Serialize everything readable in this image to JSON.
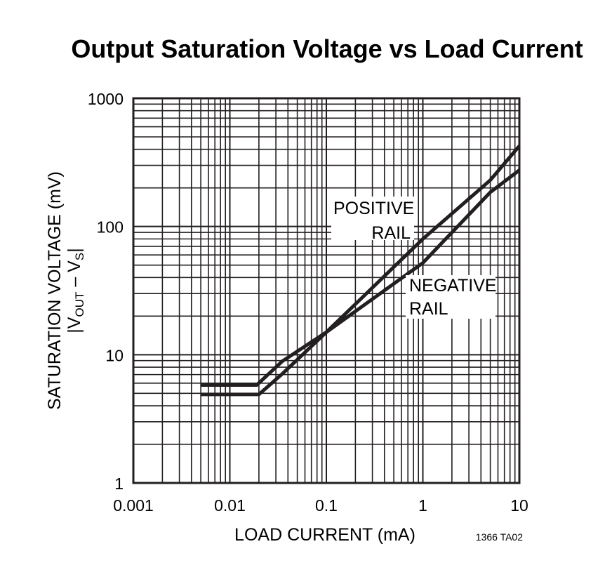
{
  "chart_data": {
    "type": "line",
    "title": "Output Saturation Voltage vs Load Current",
    "xlabel": "LOAD CURRENT (mA)",
    "ylabel": "SATURATION VOLTAGE (mV)",
    "ylabel2": {
      "bar_left": "|",
      "v1": "V",
      "sub1": "OUT",
      "dash": " – ",
      "v2": "V",
      "sub2": "S",
      "bar_right": "|"
    },
    "xscale": "log",
    "yscale": "log",
    "xlim": [
      0.001,
      10
    ],
    "ylim": [
      1,
      1000
    ],
    "xticks": [
      "0.001",
      "0.01",
      "0.1",
      "1",
      "10"
    ],
    "yticks": [
      "1",
      "10",
      "100",
      "1000"
    ],
    "grid": true,
    "series": [
      {
        "name": "POSITIVE RAIL",
        "label_lines": [
          "POSITIVE",
          "RAIL"
        ],
        "x": [
          0.005,
          0.02,
          0.035,
          0.1,
          1,
          5,
          10
        ],
        "y": [
          4.9,
          4.9,
          7.1,
          15,
          80,
          230,
          425
        ]
      },
      {
        "name": "NEGATIVE RAIL",
        "label_lines": [
          "NEGATIVE",
          "RAIL"
        ],
        "x": [
          0.005,
          0.019,
          0.035,
          0.1,
          1,
          5,
          10
        ],
        "y": [
          5.8,
          5.8,
          8.9,
          15,
          52,
          185,
          275
        ]
      }
    ],
    "note": "1366 TA02",
    "line_color": "#231f20"
  }
}
